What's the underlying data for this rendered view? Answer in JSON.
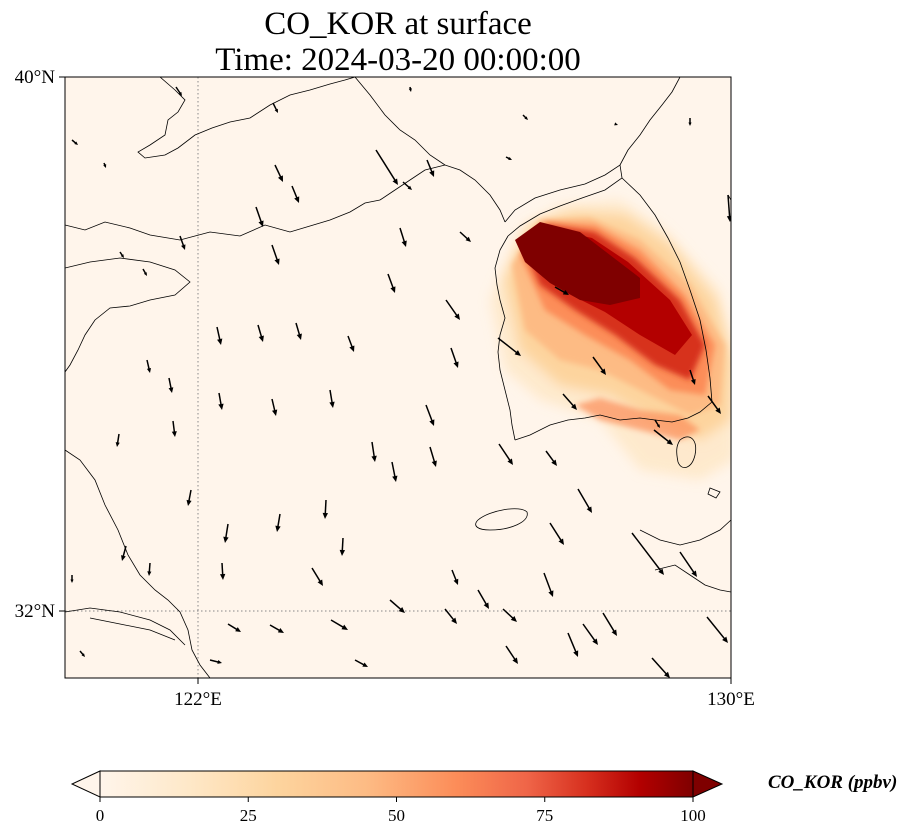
{
  "figure": {
    "title_line1": "CO_KOR at surface",
    "title_line2": "Time: 2024-03-20 00:00:00"
  },
  "map": {
    "type": "filled-contour map with wind vectors",
    "lon_range_deg_e": [
      120,
      130
    ],
    "lat_range_deg_n": [
      31,
      40
    ],
    "gridlines": "dotted",
    "background_color": "#fff5eb",
    "lat_ticks": [
      {
        "value": 40,
        "label": "40°N"
      },
      {
        "value": 32,
        "label": "32°N"
      }
    ],
    "lon_ticks": [
      {
        "value": 122,
        "label": "122°E"
      },
      {
        "value": 130,
        "label": "130°E"
      }
    ]
  },
  "colorbar": {
    "label": "CO_KOR (ppbv)",
    "colormap": "OrRd",
    "colors": [
      "#fff7ec",
      "#fee8c8",
      "#fdd49e",
      "#fdbb84",
      "#fc8d59",
      "#ef6548",
      "#d7301f",
      "#b30000",
      "#7f0000"
    ],
    "extend": "both",
    "range": [
      0,
      100
    ],
    "ticks": [
      {
        "value": 0,
        "label": "0"
      },
      {
        "value": 25,
        "label": "25"
      },
      {
        "value": 50,
        "label": "50"
      },
      {
        "value": 75,
        "label": "75"
      },
      {
        "value": 100,
        "label": "100"
      }
    ]
  }
}
